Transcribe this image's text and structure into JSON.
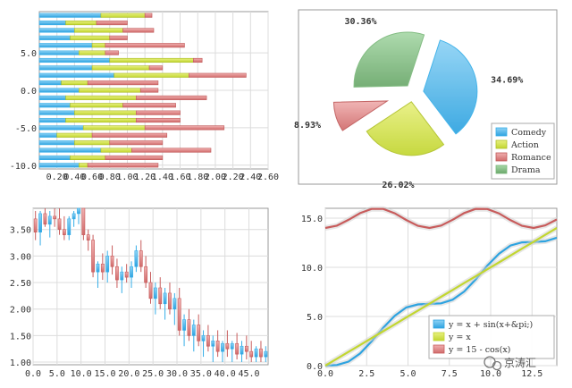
{
  "colors": {
    "blue": "#36aee8",
    "green": "#c8db3a",
    "red": "#d87a7a",
    "gray": "#7ab87a"
  },
  "chart_data": [
    {
      "type": "bar",
      "orientation": "horizontal",
      "stacked": true,
      "grid": true,
      "xlim": [
        0,
        2.6
      ],
      "ylim": [
        -10.5,
        10.5
      ],
      "x_ticks": [
        "0.20",
        "0.40",
        "0.60",
        "0.80",
        "1.00",
        "1.20",
        "1.40",
        "1.60",
        "1.80",
        "2.00",
        "2.20",
        "2.40",
        "2.60"
      ],
      "y_ticks": [
        "5.0",
        "0.0",
        "-5.0",
        "-10.0"
      ],
      "y": [
        10,
        9,
        8,
        7,
        6,
        5,
        4,
        3,
        2,
        1,
        0,
        -1,
        -2,
        -3,
        -4,
        -5,
        -6,
        -7,
        -8,
        -9,
        -10
      ],
      "series": [
        {
          "values": [
            0.7,
            0.3,
            0.4,
            0.35,
            0.6,
            0.45,
            0.8,
            0.6,
            0.85,
            0.25,
            0.45,
            0.3,
            0.35,
            0.4,
            0.3,
            0.5,
            0.2,
            0.4,
            0.7,
            0.35,
            0.45
          ]
        },
        {
          "values": [
            0.5,
            0.35,
            0.55,
            0.45,
            0.15,
            0.3,
            0.95,
            0.65,
            0.85,
            0.3,
            0.7,
            0.8,
            0.6,
            0.7,
            0.8,
            0.7,
            0.4,
            0.4,
            0.35,
            0.4,
            0.1
          ]
        },
        {
          "values": [
            0.08,
            0.35,
            0.35,
            0.2,
            0.9,
            0.15,
            0.1,
            0.15,
            0.65,
            0.8,
            0.2,
            0.8,
            0.6,
            0.5,
            0.5,
            0.9,
            0.85,
            0.6,
            0.9,
            0.65,
            0.8
          ]
        }
      ]
    },
    {
      "type": "pie",
      "labels": [
        "Comedy",
        "Action",
        "Romance",
        "Drama"
      ],
      "values": [
        34.69,
        26.02,
        8.93,
        30.36
      ],
      "value_labels": [
        "34.69%",
        "26.02%",
        "8.93%",
        "30.36%"
      ],
      "legend_position": "bottom-right"
    },
    {
      "type": "candlestick",
      "grid": true,
      "xlim": [
        0,
        49
      ],
      "ylim": [
        0.95,
        3.9
      ],
      "x_ticks": [
        "0.0",
        "5.0",
        "10.0",
        "15.0",
        "20.0",
        "25.0",
        "30.0",
        "35.0",
        "40.0",
        "45.0"
      ],
      "y_ticks": [
        "3.50",
        "3.00",
        "2.50",
        "2.00",
        "1.50",
        "1.00"
      ],
      "ohlc": [
        [
          3.7,
          3.85,
          3.3,
          3.45
        ],
        [
          3.45,
          3.85,
          3.2,
          3.8
        ],
        [
          3.8,
          3.9,
          3.55,
          3.6
        ],
        [
          3.6,
          3.85,
          3.35,
          3.75
        ],
        [
          3.75,
          3.9,
          3.55,
          3.7
        ],
        [
          3.7,
          3.9,
          3.4,
          3.5
        ],
        [
          3.5,
          3.75,
          3.3,
          3.4
        ],
        [
          3.4,
          3.75,
          3.3,
          3.7
        ],
        [
          3.7,
          3.85,
          3.55,
          3.8
        ],
        [
          3.8,
          3.95,
          3.6,
          3.9
        ],
        [
          3.9,
          3.95,
          3.3,
          3.4
        ],
        [
          3.4,
          3.5,
          3.1,
          3.3
        ],
        [
          3.3,
          3.4,
          2.6,
          2.7
        ],
        [
          2.7,
          2.9,
          2.4,
          2.85
        ],
        [
          2.85,
          3.05,
          2.55,
          2.7
        ],
        [
          2.7,
          3.1,
          2.5,
          3.0
        ],
        [
          3.0,
          3.2,
          2.65,
          2.8
        ],
        [
          2.8,
          2.95,
          2.4,
          2.55
        ],
        [
          2.55,
          2.8,
          2.3,
          2.7
        ],
        [
          2.7,
          2.85,
          2.5,
          2.6
        ],
        [
          2.6,
          2.9,
          2.4,
          2.8
        ],
        [
          2.8,
          3.2,
          2.7,
          3.1
        ],
        [
          3.1,
          3.3,
          2.7,
          2.8
        ],
        [
          2.8,
          3.0,
          2.4,
          2.5
        ],
        [
          2.5,
          2.7,
          2.1,
          2.2
        ],
        [
          2.2,
          2.5,
          1.9,
          2.4
        ],
        [
          2.4,
          2.6,
          2.0,
          2.1
        ],
        [
          2.1,
          2.4,
          1.8,
          2.3
        ],
        [
          2.3,
          2.5,
          1.9,
          2.0
        ],
        [
          2.0,
          2.3,
          1.7,
          2.2
        ],
        [
          2.2,
          2.4,
          1.5,
          1.6
        ],
        [
          1.6,
          1.9,
          1.3,
          1.8
        ],
        [
          1.8,
          2.0,
          1.4,
          1.5
        ],
        [
          1.5,
          1.8,
          1.2,
          1.7
        ],
        [
          1.7,
          1.9,
          1.3,
          1.4
        ],
        [
          1.4,
          1.6,
          1.1,
          1.5
        ],
        [
          1.5,
          1.7,
          1.2,
          1.3
        ],
        [
          1.3,
          1.5,
          1.0,
          1.4
        ],
        [
          1.4,
          1.6,
          1.1,
          1.2
        ],
        [
          1.2,
          1.4,
          1.0,
          1.35
        ],
        [
          1.35,
          1.6,
          1.1,
          1.25
        ],
        [
          1.25,
          1.4,
          1.0,
          1.35
        ],
        [
          1.35,
          1.55,
          1.05,
          1.15
        ],
        [
          1.15,
          1.4,
          1.0,
          1.3
        ],
        [
          1.3,
          1.5,
          1.05,
          1.2
        ],
        [
          1.2,
          1.4,
          1.0,
          1.1
        ],
        [
          1.1,
          1.3,
          1.0,
          1.25
        ],
        [
          1.25,
          1.4,
          1.0,
          1.1
        ],
        [
          1.1,
          1.3,
          1.0,
          1.2
        ]
      ]
    },
    {
      "type": "line",
      "grid": true,
      "xlim": [
        0,
        14
      ],
      "ylim": [
        0,
        16
      ],
      "x_ticks": [
        "0.0",
        "2.5",
        "5.0",
        "7.5",
        "10.0",
        "12.5"
      ],
      "y_ticks": [
        "0.0",
        "5.0",
        "10.0",
        "15.0"
      ],
      "x": [
        0,
        0.7,
        1.4,
        2.1,
        2.8,
        3.5,
        4.2,
        4.9,
        5.6,
        6.3,
        7.0,
        7.7,
        8.4,
        9.1,
        9.8,
        10.5,
        11.2,
        11.9,
        12.6,
        13.3,
        14.0
      ],
      "series": [
        {
          "name": "y = x + sin(x+&pi;)",
          "color_key": "blue",
          "values": [
            0,
            0.06,
            0.41,
            1.24,
            2.47,
            3.85,
            5.07,
            5.92,
            6.23,
            6.28,
            6.34,
            6.71,
            7.54,
            8.78,
            10.17,
            11.38,
            12.22,
            12.54,
            12.57,
            12.65,
            13.01
          ]
        },
        {
          "name": "y = x",
          "color_key": "green",
          "values": [
            0,
            0.7,
            1.4,
            2.1,
            2.8,
            3.5,
            4.2,
            4.9,
            5.6,
            6.3,
            7.0,
            7.7,
            8.4,
            9.1,
            9.8,
            10.5,
            11.2,
            11.9,
            12.6,
            13.3,
            14.0
          ]
        },
        {
          "name": "y = 15 - cos(x)",
          "color_key": "red",
          "values": [
            14.0,
            14.24,
            14.83,
            15.51,
            15.94,
            15.94,
            15.49,
            14.81,
            14.22,
            14.0,
            14.25,
            14.84,
            15.52,
            15.95,
            15.93,
            15.48,
            14.79,
            14.22,
            14.0,
            14.26,
            14.86
          ]
        }
      ]
    }
  ],
  "watermark": "京涛汇"
}
